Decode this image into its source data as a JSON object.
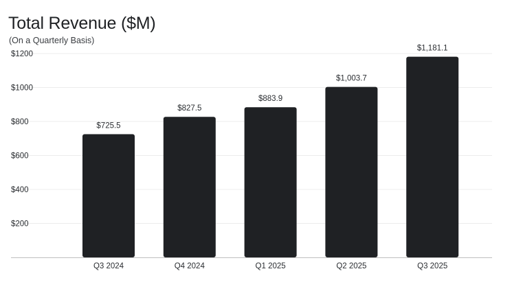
{
  "chart_data": {
    "type": "bar",
    "title": "Total Revenue ($M)",
    "subtitle": "(On a Quarterly Basis)",
    "categories": [
      "Q3 2024",
      "Q4 2024",
      "Q1 2025",
      "Q2 2025",
      "Q3 2025"
    ],
    "values": [
      725.5,
      827.5,
      883.9,
      1003.7,
      1181.1
    ],
    "data_labels": [
      "$725.5",
      "$827.5",
      "$883.9",
      "$1,003.7",
      "$1,181.1"
    ],
    "ylim": [
      0,
      1200
    ],
    "yticks": [
      200,
      400,
      600,
      800,
      1000,
      1200
    ],
    "ytick_labels": [
      "$200",
      "$400",
      "$600",
      "$800",
      "$1000",
      "$1200"
    ],
    "xlabel": "",
    "ylabel": "",
    "grid": "horizontal",
    "legend": "none",
    "colors": {
      "bar": "#1f2124",
      "grid": "#ececec",
      "axis": "#bfbfbf"
    }
  }
}
